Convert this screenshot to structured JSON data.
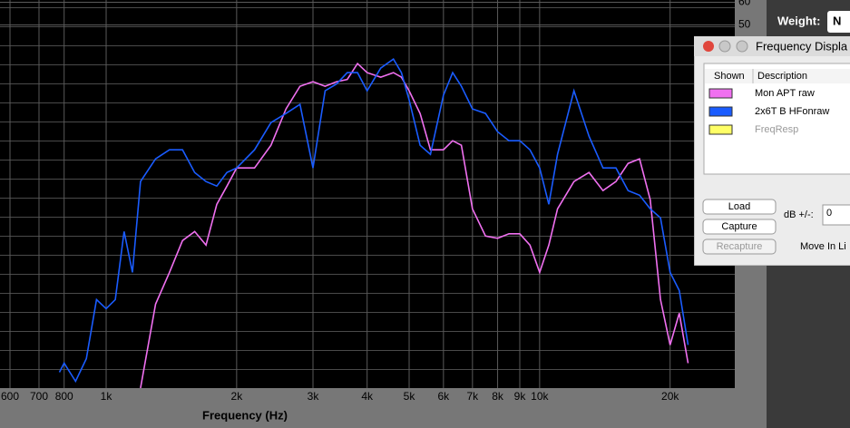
{
  "chart_data": {
    "type": "line",
    "x_label": "Frequency (Hz)",
    "log_x": true,
    "grid": true,
    "xlim": [
      569,
      28200
    ],
    "ylim": [
      -110,
      61
    ],
    "xticks": [
      {
        "value": 600,
        "label": "600"
      },
      {
        "value": 700,
        "label": "700"
      },
      {
        "value": 800,
        "label": "800"
      },
      {
        "value": 1000,
        "label": "1k"
      },
      {
        "value": 2000,
        "label": "2k"
      },
      {
        "value": 3000,
        "label": "3k"
      },
      {
        "value": 4000,
        "label": "4k"
      },
      {
        "value": 5000,
        "label": "5k"
      },
      {
        "value": 6000,
        "label": "6k"
      },
      {
        "value": 7000,
        "label": "7k"
      },
      {
        "value": 8000,
        "label": "8k"
      },
      {
        "value": 9000,
        "label": "9k"
      },
      {
        "value": 10000,
        "label": "10k"
      },
      {
        "value": 20000,
        "label": "20k"
      }
    ],
    "yticks": [
      50,
      60
    ],
    "x": [
      780,
      800,
      850,
      900,
      950,
      1000,
      1050,
      1100,
      1150,
      1200,
      1300,
      1400,
      1500,
      1600,
      1700,
      1800,
      1900,
      2000,
      2200,
      2400,
      2600,
      2800,
      3000,
      3200,
      3400,
      3600,
      3800,
      4000,
      4300,
      4600,
      4800,
      5000,
      5300,
      5600,
      6000,
      6300,
      6600,
      7000,
      7500,
      8000,
      8500,
      9000,
      9500,
      10000,
      10500,
      11000,
      12000,
      13000,
      14000,
      15000,
      16000,
      17000,
      18000,
      19000,
      20000,
      21000,
      22000,
      23000
    ],
    "series": [
      {
        "name": "Mon APT raw",
        "color": "#f070f0",
        "values": [
          null,
          null,
          null,
          null,
          null,
          null,
          null,
          null,
          null,
          -110,
          -73,
          -59,
          -45,
          -41,
          -47,
          -29,
          -21,
          -13,
          -13,
          -3,
          13,
          23,
          25,
          23,
          25,
          26,
          33,
          29,
          27,
          29,
          27,
          21,
          11,
          -5,
          -5,
          -1,
          -3,
          -31,
          -43,
          -44,
          -42,
          -42,
          -47,
          -59,
          -47,
          -31,
          -19,
          -15,
          -23,
          -19,
          -11,
          -9,
          -27,
          -71,
          -91,
          -77,
          -99,
          null
        ]
      },
      {
        "name": "2x6T B HFonraw",
        "color": "#1a5cff",
        "values": [
          -103,
          -99,
          -107,
          -97,
          -71,
          -75,
          -71,
          -41,
          -59,
          -19,
          -9,
          -5,
          -5,
          -15,
          -19,
          -21,
          -15,
          -13,
          -5,
          7,
          11,
          15,
          -13,
          21,
          24,
          29,
          29,
          21,
          31,
          35,
          29,
          17,
          -3,
          -7,
          19,
          29,
          23,
          13,
          11,
          3,
          -1,
          -1,
          -5,
          -13,
          -29,
          -7,
          21,
          1,
          -13,
          -13,
          -23,
          -25,
          -31,
          -35,
          -59,
          -67,
          -91,
          null
        ]
      },
      {
        "name": "FreqResp",
        "color": "#ffff66",
        "values": [
          null,
          null,
          null,
          null,
          null,
          null,
          null,
          null,
          null,
          null,
          null,
          null,
          null,
          null,
          null,
          null,
          null,
          null,
          null,
          null,
          null,
          null,
          null,
          null,
          null,
          null,
          null,
          null,
          null,
          null,
          null,
          null,
          null,
          null,
          null,
          null,
          null,
          null,
          null,
          null,
          null,
          null,
          null,
          null,
          null,
          null,
          null,
          null,
          null,
          null,
          null,
          null,
          null,
          null,
          null,
          null,
          null,
          null
        ]
      }
    ]
  },
  "weight": {
    "label": "Weight:",
    "value": "N"
  },
  "panel": {
    "title": "Frequency Displa",
    "columns": [
      "Shown",
      "Description"
    ],
    "buttons": [
      "Load",
      "Capture",
      "Recapture"
    ],
    "db_label": "dB +/-:",
    "db_value": "0",
    "move_label": "Move In Li"
  }
}
